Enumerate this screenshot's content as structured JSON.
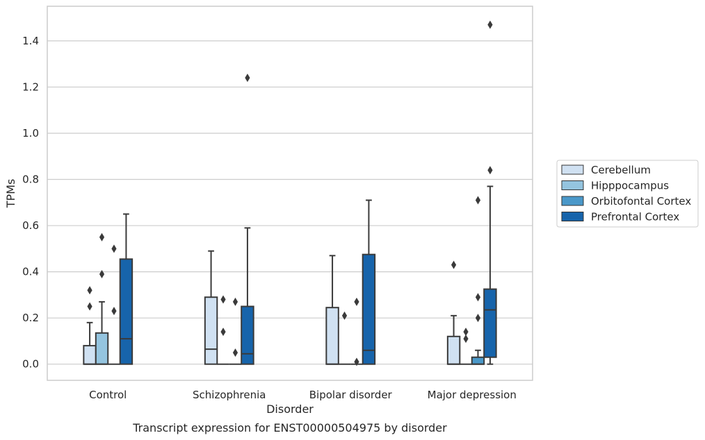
{
  "chart_data": {
    "type": "box",
    "title": "",
    "caption": "Transcript expression for ENST00000504975 by disorder",
    "xlabel": "Disorder",
    "ylabel": "TPMs",
    "ylim": [
      -0.07,
      1.55
    ],
    "yticks": [
      0.0,
      0.2,
      0.4,
      0.6,
      0.8,
      1.0,
      1.2,
      1.4
    ],
    "ytick_labels": [
      "0.0",
      "0.2",
      "0.4",
      "0.6",
      "0.8",
      "1.0",
      "1.2",
      "1.4"
    ],
    "grid": "horizontal",
    "legend_position": "right",
    "categories": [
      "Control",
      "Schizophrenia",
      "Bipolar disorder",
      "Major depression"
    ],
    "series": [
      {
        "name": "Cerebellum",
        "color": "#d0e1f2",
        "boxes": [
          {
            "q1": 0.0,
            "median": 0.0,
            "q3": 0.08,
            "whisker_low": 0.0,
            "whisker_high": 0.18,
            "outliers": [
              0.25,
              0.32
            ]
          },
          {
            "q1": 0.0,
            "median": 0.065,
            "q3": 0.29,
            "whisker_low": 0.0,
            "whisker_high": 0.49,
            "outliers": []
          },
          {
            "q1": 0.0,
            "median": 0.0,
            "q3": 0.245,
            "whisker_low": 0.0,
            "whisker_high": 0.47,
            "outliers": []
          },
          {
            "q1": 0.0,
            "median": 0.0,
            "q3": 0.12,
            "whisker_low": 0.0,
            "whisker_high": 0.21,
            "outliers": [
              0.43
            ]
          }
        ]
      },
      {
        "name": "Hipppocampus",
        "color": "#94c4df",
        "boxes": [
          {
            "q1": 0.0,
            "median": 0.0,
            "q3": 0.135,
            "whisker_low": 0.0,
            "whisker_high": 0.27,
            "outliers": [
              0.39,
              0.55
            ]
          },
          {
            "q1": 0.0,
            "median": 0.0,
            "q3": 0.0,
            "whisker_low": 0.0,
            "whisker_high": 0.0,
            "outliers": [
              0.14,
              0.28
            ]
          },
          {
            "q1": 0.0,
            "median": 0.0,
            "q3": 0.0,
            "whisker_low": 0.0,
            "whisker_high": 0.0,
            "outliers": [
              0.21
            ]
          },
          {
            "q1": 0.0,
            "median": 0.0,
            "q3": 0.0,
            "whisker_low": 0.0,
            "whisker_high": 0.0,
            "outliers": [
              0.11,
              0.14
            ]
          }
        ]
      },
      {
        "name": "Orbitofontal Cortex",
        "color": "#4a98c9",
        "boxes": [
          {
            "q1": 0.0,
            "median": 0.0,
            "q3": 0.0,
            "whisker_low": 0.0,
            "whisker_high": 0.0,
            "outliers": [
              0.23,
              0.5
            ]
          },
          {
            "q1": 0.0,
            "median": 0.0,
            "q3": 0.0,
            "whisker_low": 0.0,
            "whisker_high": 0.0,
            "outliers": [
              0.05,
              0.27
            ]
          },
          {
            "q1": 0.0,
            "median": 0.0,
            "q3": 0.0,
            "whisker_low": 0.0,
            "whisker_high": 0.0,
            "outliers": [
              0.01,
              0.27
            ]
          },
          {
            "q1": 0.0,
            "median": 0.0,
            "q3": 0.03,
            "whisker_low": 0.0,
            "whisker_high": 0.06,
            "outliers": [
              0.2,
              0.29,
              0.71
            ]
          }
        ]
      },
      {
        "name": "Prefrontal Cortex",
        "color": "#1764ab",
        "boxes": [
          {
            "q1": 0.0,
            "median": 0.11,
            "q3": 0.455,
            "whisker_low": 0.0,
            "whisker_high": 0.65,
            "outliers": []
          },
          {
            "q1": 0.0,
            "median": 0.045,
            "q3": 0.25,
            "whisker_low": 0.0,
            "whisker_high": 0.59,
            "outliers": [
              1.24
            ]
          },
          {
            "q1": 0.0,
            "median": 0.06,
            "q3": 0.475,
            "whisker_low": 0.0,
            "whisker_high": 0.71,
            "outliers": []
          },
          {
            "q1": 0.03,
            "median": 0.235,
            "q3": 0.325,
            "whisker_low": 0.0,
            "whisker_high": 0.77,
            "outliers": [
              0.84,
              1.47
            ]
          }
        ]
      }
    ]
  }
}
